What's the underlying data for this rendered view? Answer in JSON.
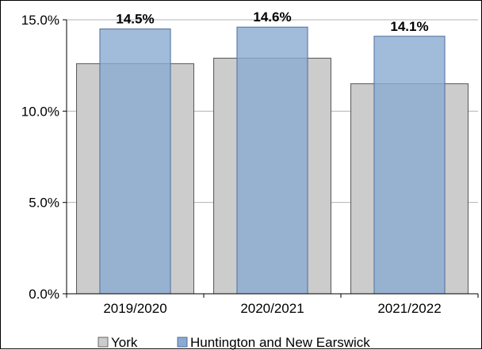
{
  "chart_data": {
    "type": "bar",
    "categories": [
      "2019/2020",
      "2020/2021",
      "2021/2022"
    ],
    "series": [
      {
        "name": "York",
        "values": [
          12.6,
          12.9,
          11.5
        ],
        "color": "#cccccc"
      },
      {
        "name": "Huntington and New Earswick",
        "values": [
          14.5,
          14.6,
          14.1
        ],
        "color": "#8aaad2"
      }
    ],
    "data_labels": [
      "14.5%",
      "14.6%",
      "14.1%"
    ],
    "yticks": [
      "0.0%",
      "5.0%",
      "10.0%",
      "15.0%"
    ],
    "ylim": [
      0,
      15
    ],
    "grid": true,
    "legend_position": "bottom",
    "title": "",
    "xlabel": "",
    "ylabel": ""
  }
}
